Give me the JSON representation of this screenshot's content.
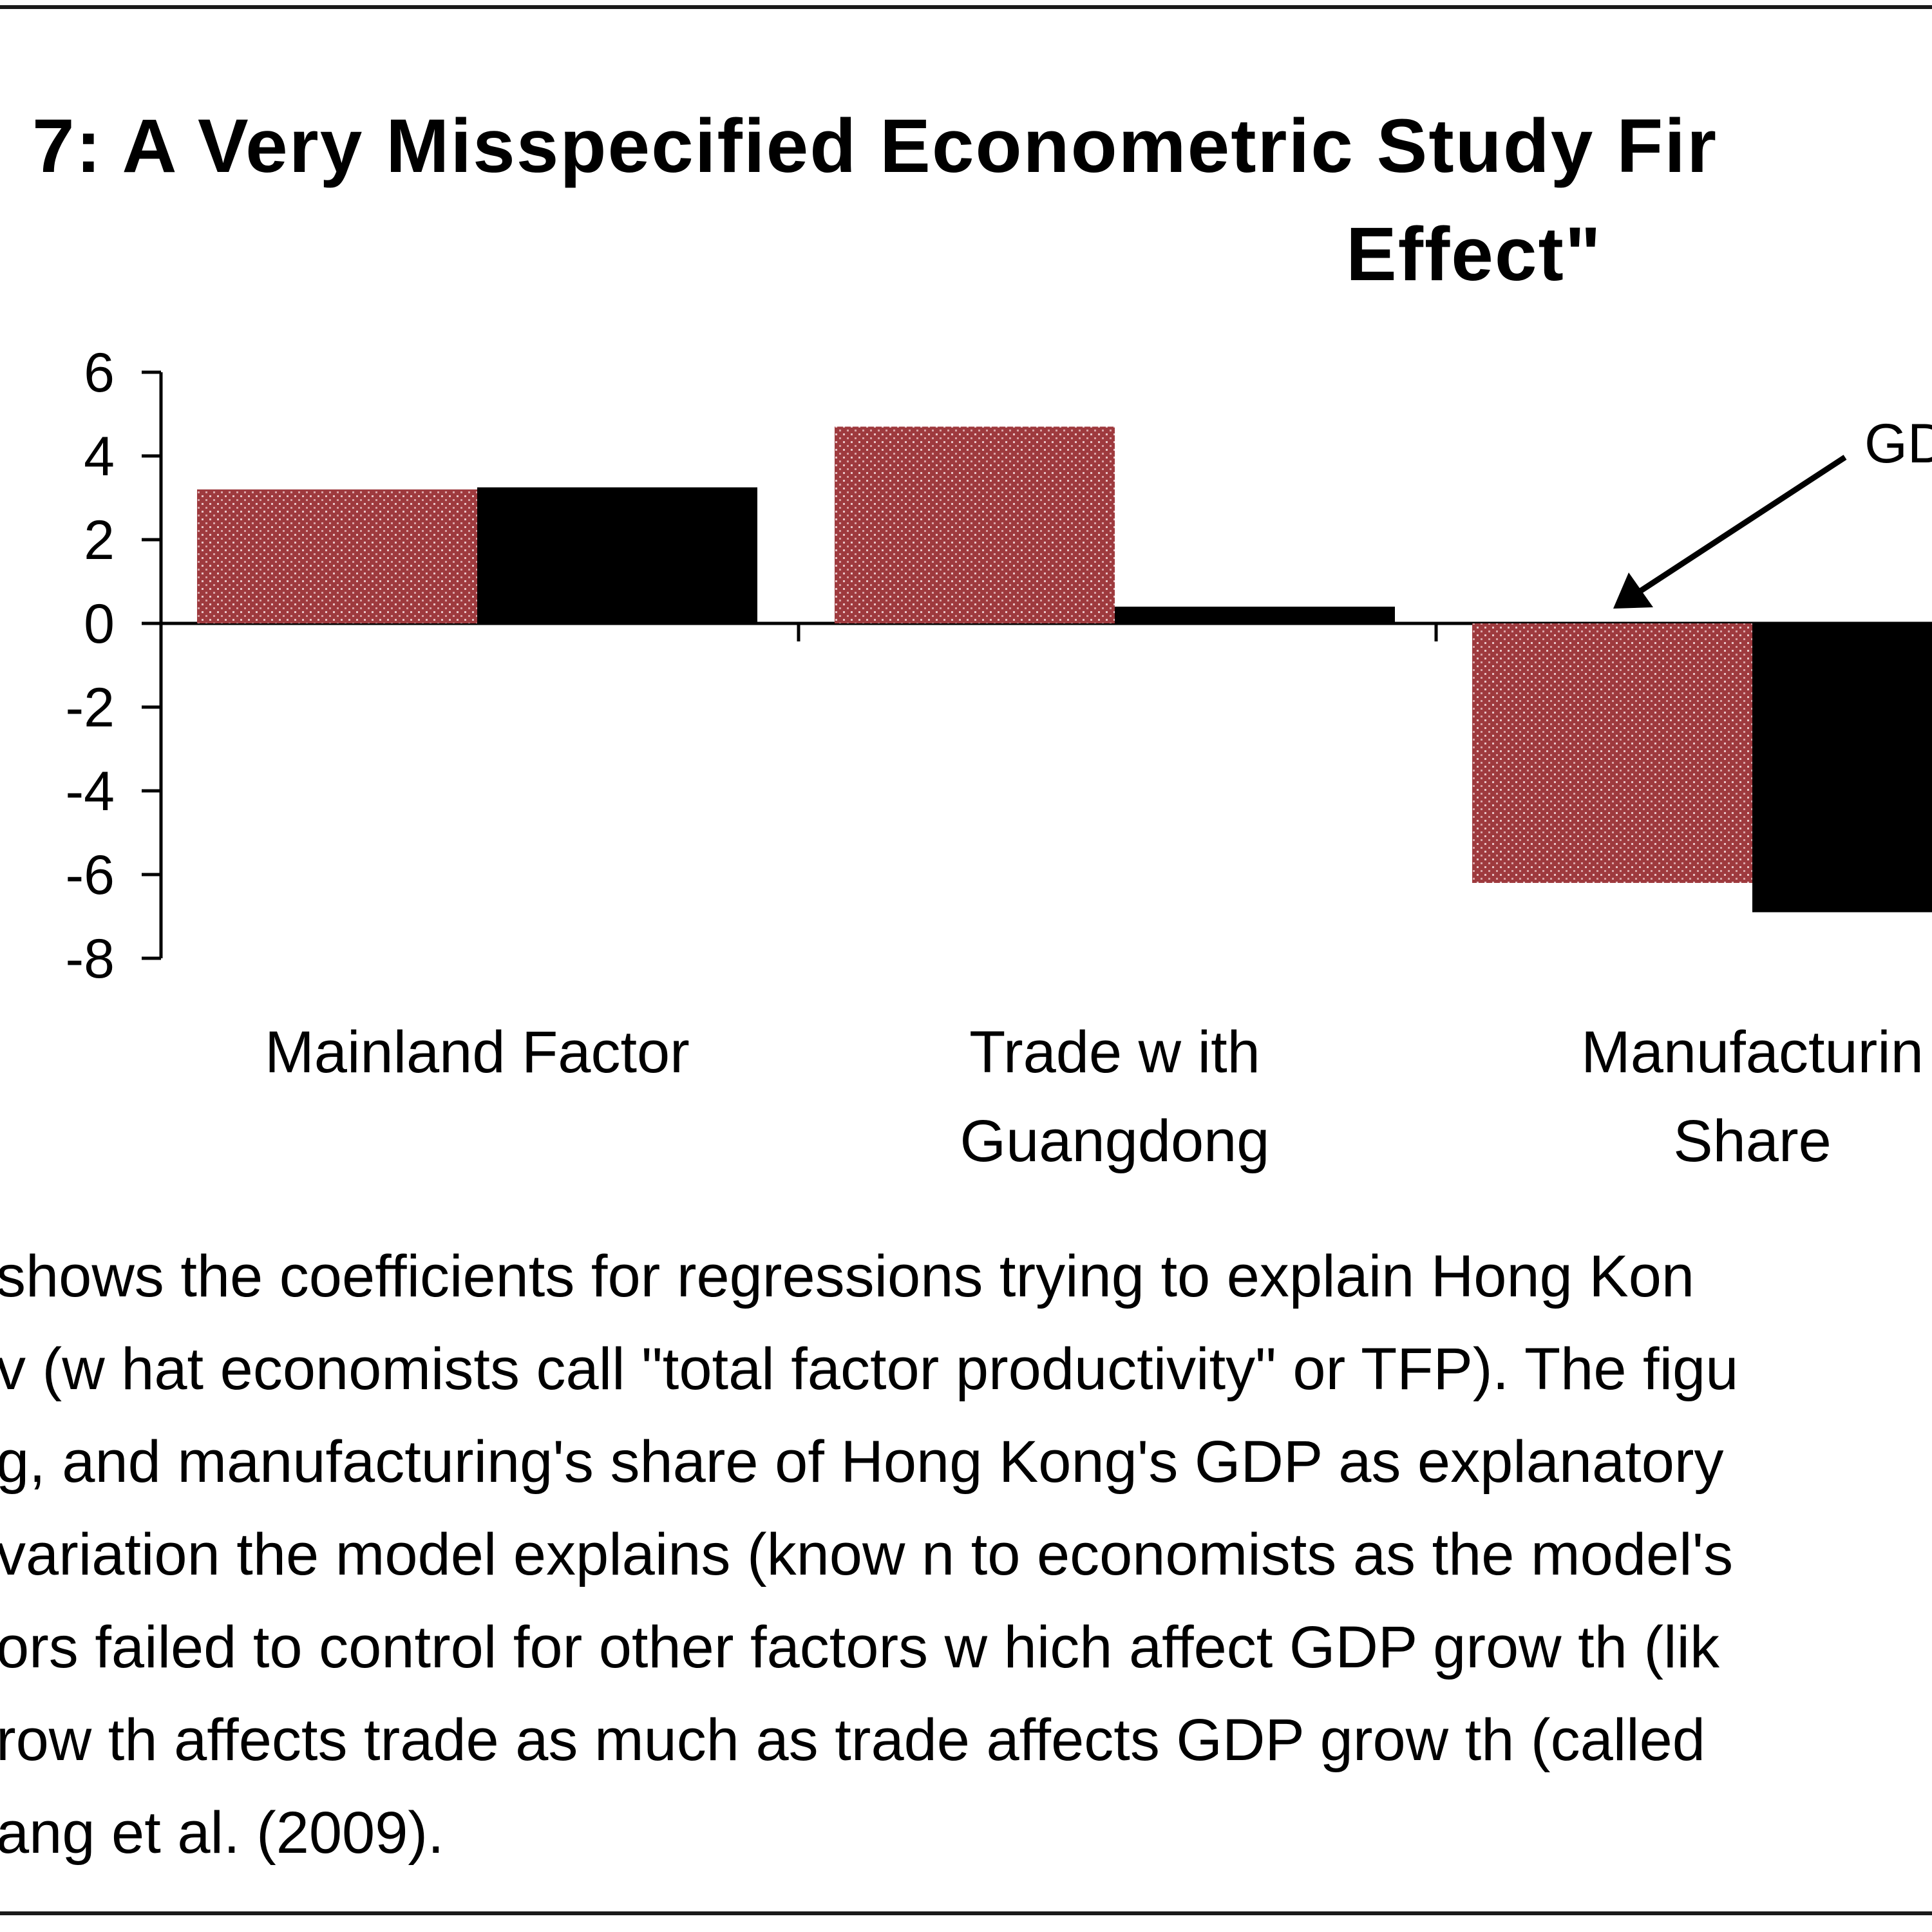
{
  "title_lines": [
    "7: A Very Misspecified Econometric Study Fir",
    "Effect\""
  ],
  "chart_data": {
    "type": "bar",
    "categories": [
      "Mainland Factor",
      "Trade with Guangdong",
      "Manufacturing Share"
    ],
    "category_label_lines": [
      [
        "Mainland Factor"
      ],
      [
        "Trade w ith",
        "Guangdong"
      ],
      [
        "Manufacturin",
        "Share"
      ]
    ],
    "series": [
      {
        "name": "series-red-dotted",
        "color": "#9e3a3e",
        "values": [
          3.2,
          4.7,
          -6.2
        ]
      },
      {
        "name": "series-black",
        "color": "#000000",
        "values": [
          3.25,
          0.4,
          -6.9
        ]
      }
    ],
    "ylim": [
      -8,
      6
    ],
    "yticks": [
      6,
      4,
      2,
      0,
      -2,
      -4,
      -6,
      -8
    ],
    "annotation": {
      "text": "GD"
    }
  },
  "caption_lines": [
    "shows the coefficients for regressions trying to explain Hong Kon",
    "v (w hat economists call \"total factor productivity\" or TFP).  The figu",
    "g, and manufacturing's share of Hong Kong's GDP as explanatory",
    "variation the model explains (know n to economists as the model's",
    "ors failed to control for other factors w hich affect GDP grow th (lik",
    "row th affects trade as much as trade affects GDP grow th (called",
    "ang et al. (2009)."
  ]
}
